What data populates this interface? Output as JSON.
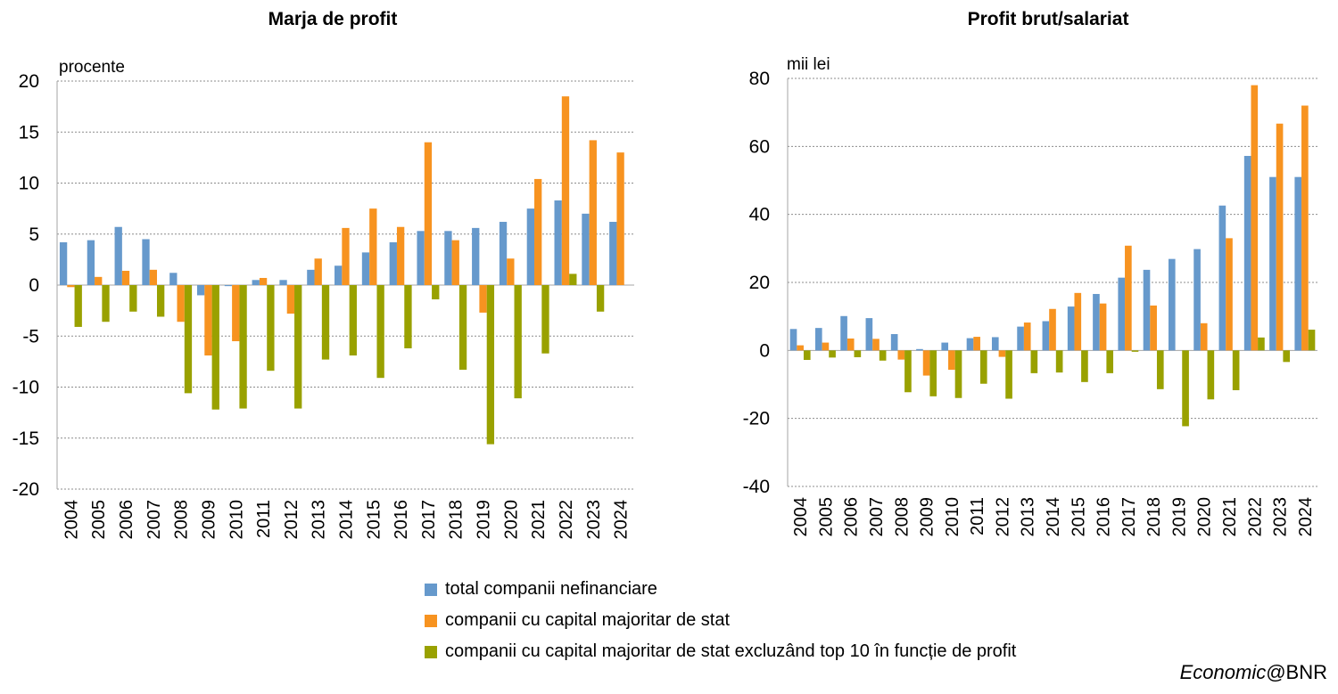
{
  "colors": {
    "total": "#6699CC",
    "stat": "#F79320",
    "excl": "#99A100",
    "grid": "#8C8C8C",
    "axis": "#A6A6A6"
  },
  "legend": [
    {
      "key": "total",
      "label": "total companii nefinanciare"
    },
    {
      "key": "stat",
      "label": "companii cu capital majoritar de stat"
    },
    {
      "key": "excl",
      "label": "companii cu capital majoritar de stat excluzând top 10 în funcție de profit"
    }
  ],
  "credit": {
    "italic": "Economic",
    "rest": "@BNR"
  },
  "chart_data": [
    {
      "type": "bar",
      "title": "Marja de profit",
      "unit_label": "procente",
      "ylim": [
        -20,
        20
      ],
      "yticks": [
        -20,
        -15,
        -10,
        -5,
        0,
        5,
        10,
        15,
        20
      ],
      "grid": true,
      "categories": [
        "2004",
        "2005",
        "2006",
        "2007",
        "2008",
        "2009",
        "2010",
        "2011",
        "2012",
        "2013",
        "2014",
        "2015",
        "2016",
        "2017",
        "2018",
        "2019",
        "2020",
        "2021",
        "2022",
        "2023",
        "2024"
      ],
      "series": [
        {
          "key": "total",
          "name": "total companii nefinanciare",
          "values": [
            4.2,
            4.4,
            5.7,
            4.5,
            1.2,
            -1.0,
            -0.1,
            0.5,
            0.5,
            1.5,
            1.9,
            3.2,
            4.2,
            5.3,
            5.3,
            5.6,
            6.2,
            7.5,
            8.3,
            7.0,
            6.2
          ]
        },
        {
          "key": "stat",
          "name": "companii cu capital majoritar de stat",
          "values": [
            -0.2,
            0.8,
            1.4,
            1.5,
            -3.6,
            -6.9,
            -5.5,
            0.7,
            -2.8,
            2.6,
            5.6,
            7.5,
            5.7,
            14.0,
            4.4,
            -2.7,
            2.6,
            10.4,
            18.5,
            14.2,
            13.0
          ]
        },
        {
          "key": "excl",
          "name": "companii cu capital majoritar de stat excluzând top 10 în funcție de profit",
          "values": [
            -4.1,
            -3.6,
            -2.6,
            -3.1,
            -10.6,
            -12.2,
            -12.1,
            -8.4,
            -12.1,
            -7.3,
            -6.9,
            -9.1,
            -6.2,
            -1.4,
            -8.3,
            -15.6,
            -11.1,
            -6.7,
            1.1,
            -2.6,
            0.0
          ]
        }
      ]
    },
    {
      "type": "bar",
      "title": "Profit brut/salariat",
      "unit_label": "mii lei",
      "ylim": [
        -40,
        80
      ],
      "yticks": [
        -40,
        -20,
        0,
        20,
        40,
        60,
        80
      ],
      "grid": true,
      "categories": [
        "2004",
        "2005",
        "2006",
        "2007",
        "2008",
        "2009",
        "2010",
        "2011",
        "2012",
        "2013",
        "2014",
        "2015",
        "2016",
        "2017",
        "2018",
        "2019",
        "2020",
        "2021",
        "2022",
        "2023",
        "2024"
      ],
      "series": [
        {
          "key": "total",
          "name": "total companii nefinanciare",
          "values": [
            6.3,
            6.6,
            10.1,
            9.5,
            4.8,
            0.4,
            2.3,
            3.6,
            3.9,
            7.0,
            8.6,
            12.9,
            16.6,
            21.4,
            23.7,
            26.9,
            29.8,
            42.6,
            57.2,
            51.0,
            51.0
          ]
        },
        {
          "key": "stat",
          "name": "companii cu capital majoritar de stat",
          "values": [
            1.5,
            2.3,
            3.5,
            3.4,
            -2.7,
            -7.4,
            -5.7,
            4.0,
            -1.9,
            8.2,
            12.2,
            16.9,
            13.8,
            30.8,
            13.2,
            0.0,
            8.0,
            33.0,
            78.0,
            66.7,
            72.0
          ]
        },
        {
          "key": "excl",
          "name": "companii cu capital majoritar de stat excluzând top 10 în funcție de profit",
          "values": [
            -2.8,
            -2.1,
            -2.0,
            -3.0,
            -12.3,
            -13.5,
            -14.0,
            -9.8,
            -14.2,
            -6.7,
            -6.5,
            -9.3,
            -6.7,
            -0.4,
            -11.4,
            -22.3,
            -14.4,
            -11.7,
            3.8,
            -3.4,
            6.1
          ]
        }
      ]
    }
  ]
}
